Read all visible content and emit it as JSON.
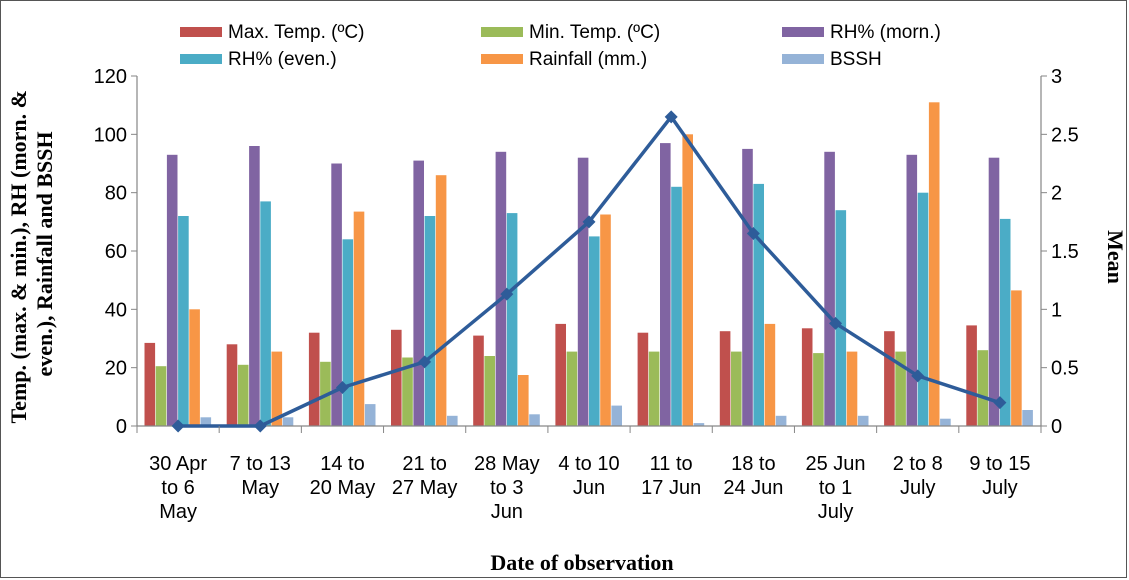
{
  "chart_data": {
    "type": "bar",
    "categories": [
      [
        "30 Apr",
        "to 6",
        "May"
      ],
      [
        "7 to 13",
        "May"
      ],
      [
        "14 to",
        "20 May"
      ],
      [
        "21 to",
        "27 May"
      ],
      [
        "28 May",
        "to 3",
        "Jun"
      ],
      [
        "4 to 10",
        "Jun"
      ],
      [
        "11 to",
        "17 Jun"
      ],
      [
        "18 to",
        "24 Jun"
      ],
      [
        "25 Jun",
        "to 1",
        "July"
      ],
      [
        "2 to 8",
        "July"
      ],
      [
        "9 to 15",
        "July"
      ]
    ],
    "series": [
      {
        "name": "Max. Temp. (ºC)",
        "color": "#C0504D",
        "values": [
          28.5,
          28,
          32,
          33,
          31,
          35,
          32,
          32.5,
          33.5,
          32.5,
          34.5
        ]
      },
      {
        "name": "Min. Temp. (ºC)",
        "color": "#9BBB59",
        "values": [
          20.5,
          21,
          22,
          23.5,
          24,
          25.5,
          25.5,
          25.5,
          25,
          25.5,
          26
        ]
      },
      {
        "name": "RH% (morn.)",
        "color": "#8064A2",
        "values": [
          93,
          96,
          90,
          91,
          94,
          92,
          97,
          95,
          94,
          93,
          92
        ]
      },
      {
        "name": "RH% (even.)",
        "color": "#4BACC6",
        "values": [
          72,
          77,
          64,
          72,
          73,
          65,
          82,
          83,
          74,
          80,
          71
        ]
      },
      {
        "name": "Rainfall (mm.)",
        "color": "#F79646",
        "values": [
          40,
          25.5,
          73.5,
          86,
          17.5,
          72.5,
          100,
          35,
          25.5,
          111,
          46.5
        ]
      },
      {
        "name": "BSSH",
        "color": "#95B3D7",
        "values": [
          3,
          3,
          7.5,
          3.5,
          4,
          7,
          1,
          3.5,
          3.5,
          2.5,
          5.5
        ]
      }
    ],
    "line_series": {
      "name": "Mean",
      "color": "#2E5C99",
      "axis": "secondary",
      "values": [
        0.0,
        0.0,
        0.33,
        0.55,
        1.13,
        1.75,
        2.65,
        1.65,
        0.88,
        0.43,
        0.2
      ]
    },
    "y_left": {
      "min": 0,
      "max": 120,
      "ticks": [
        "0",
        "20",
        "40",
        "60",
        "80",
        "100",
        "120"
      ],
      "label_lines": [
        "Temp. (max. & min.), RH (morn. &",
        "even.), Rainfall and BSSH"
      ]
    },
    "y_right": {
      "min": 0,
      "max": 3,
      "ticks": [
        "0",
        "0.5",
        "1",
        "1.5",
        "2",
        "2.5",
        "3"
      ],
      "label": "Mean"
    },
    "xlabel": "Date of observation",
    "grid": false,
    "legend_position": "top"
  }
}
